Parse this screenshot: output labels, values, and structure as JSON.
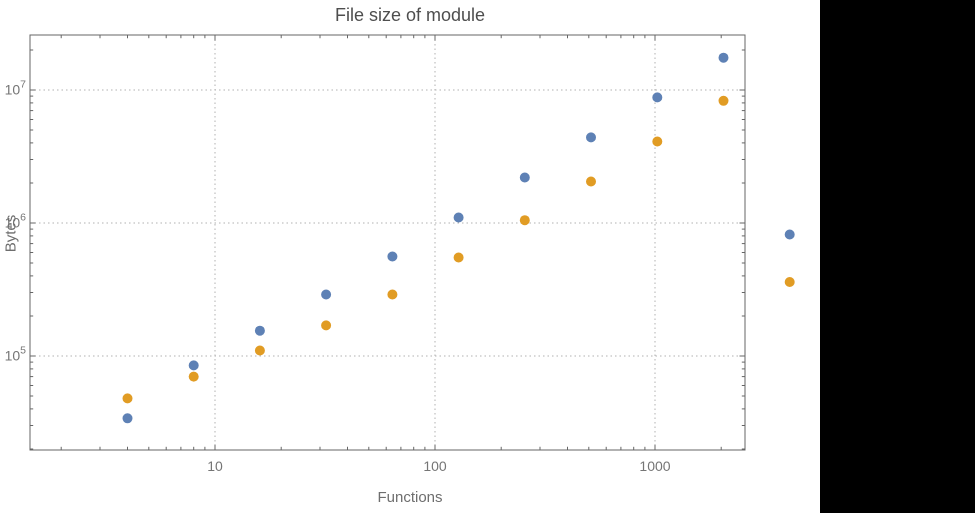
{
  "page": {
    "background": "#000000",
    "panel_background": "#ffffff"
  },
  "chart_data": {
    "type": "scatter",
    "title": "File size of module",
    "xlabel": "Functions",
    "ylabel": "Bytes",
    "x_scale": "log",
    "y_scale": "log",
    "xlim": [
      1.5,
      2570
    ],
    "ylim": [
      20000,
      26000000
    ],
    "grid": "dotted-major",
    "legend_position": "none",
    "frame_color": "#656565",
    "grid_color": "#b0b0b0",
    "tick_label_color": "#757575",
    "x_ticks": [
      {
        "label": "10",
        "value": 10
      },
      {
        "label": "100",
        "value": 100
      },
      {
        "label": "1000",
        "value": 1000
      }
    ],
    "y_ticks": [
      {
        "base": "10",
        "exp": "5",
        "value": 100000
      },
      {
        "base": "10",
        "exp": "6",
        "value": 1000000
      },
      {
        "base": "10",
        "exp": "7",
        "value": 10000000
      }
    ],
    "series": [
      {
        "name": "series-blue",
        "color": "#5E81B5",
        "points": [
          [
            4,
            34000
          ],
          [
            8,
            85000
          ],
          [
            16,
            155000
          ],
          [
            32,
            290000
          ],
          [
            64,
            560000
          ],
          [
            128,
            1100000
          ],
          [
            256,
            2200000
          ],
          [
            512,
            4400000
          ],
          [
            1024,
            8800000
          ],
          [
            2048,
            17500000
          ],
          [
            4096,
            820000
          ]
        ]
      },
      {
        "name": "series-orange",
        "color": "#E19C24",
        "points": [
          [
            4,
            48000
          ],
          [
            8,
            70000
          ],
          [
            16,
            110000
          ],
          [
            32,
            170000
          ],
          [
            64,
            290000
          ],
          [
            128,
            550000
          ],
          [
            256,
            1050000
          ],
          [
            512,
            2050000
          ],
          [
            1024,
            4100000
          ],
          [
            2048,
            8300000
          ],
          [
            4096,
            360000
          ]
        ]
      }
    ]
  }
}
